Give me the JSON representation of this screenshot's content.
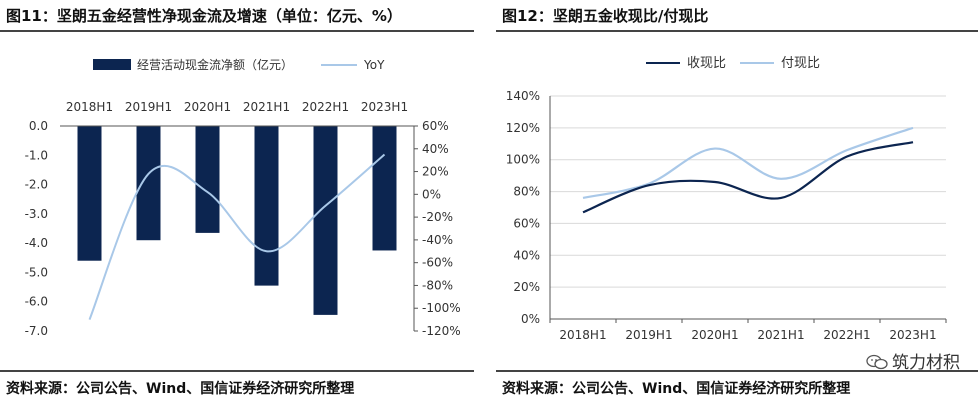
{
  "left": {
    "title": "图11：坚朗五金经营性净现金流及增速（单位：亿元、%）",
    "source": "资料来源：公司公告、Wind、国信证券经济研究所整理"
  },
  "right": {
    "title": "图12：坚朗五金收现比/付现比",
    "source": "资料来源：公司公告、Wind、国信证券经济研究所整理"
  },
  "watermark": "筑力材积",
  "colors": {
    "navy": "#0c2550",
    "lightblue": "#a9c8e8",
    "grid": "#d9d9d9",
    "axis": "#555555"
  },
  "chart_data": [
    {
      "type": "bar",
      "categories": [
        "2018H1",
        "2019H1",
        "2020H1",
        "2021H1",
        "2022H1",
        "2023H1"
      ],
      "series": [
        {
          "name": "经营活动现金流净额（亿元）",
          "type": "bar",
          "axis": "left",
          "values": [
            -4.6,
            -3.9,
            -3.65,
            -5.45,
            -6.45,
            -4.25
          ]
        },
        {
          "name": "YoY",
          "type": "line",
          "axis": "right",
          "values": [
            -110,
            18,
            2,
            -50,
            -10,
            35
          ]
        }
      ],
      "ylim_left": [
        -7.0,
        0.0
      ],
      "yticks_left": [
        "0.0",
        "-1.0",
        "-2.0",
        "-3.0",
        "-4.0",
        "-5.0",
        "-6.0",
        "-7.0"
      ],
      "ylim_right": [
        -120,
        60
      ],
      "yticks_right": [
        "60%",
        "40%",
        "20%",
        "0%",
        "-20%",
        "-40%",
        "-60%",
        "-80%",
        "-100%",
        "-120%"
      ],
      "legend": "top"
    },
    {
      "type": "line",
      "categories": [
        "2018H1",
        "2019H1",
        "2020H1",
        "2021H1",
        "2022H1",
        "2023H1"
      ],
      "series": [
        {
          "name": "收现比",
          "values": [
            67,
            84,
            86,
            76,
            102,
            111
          ]
        },
        {
          "name": "付现比",
          "values": [
            76,
            85,
            107,
            88,
            106,
            120
          ]
        }
      ],
      "ylim": [
        0,
        140
      ],
      "yticks": [
        "140%",
        "120%",
        "100%",
        "80%",
        "60%",
        "40%",
        "20%",
        "0%"
      ],
      "grid": true,
      "legend": "top"
    }
  ]
}
